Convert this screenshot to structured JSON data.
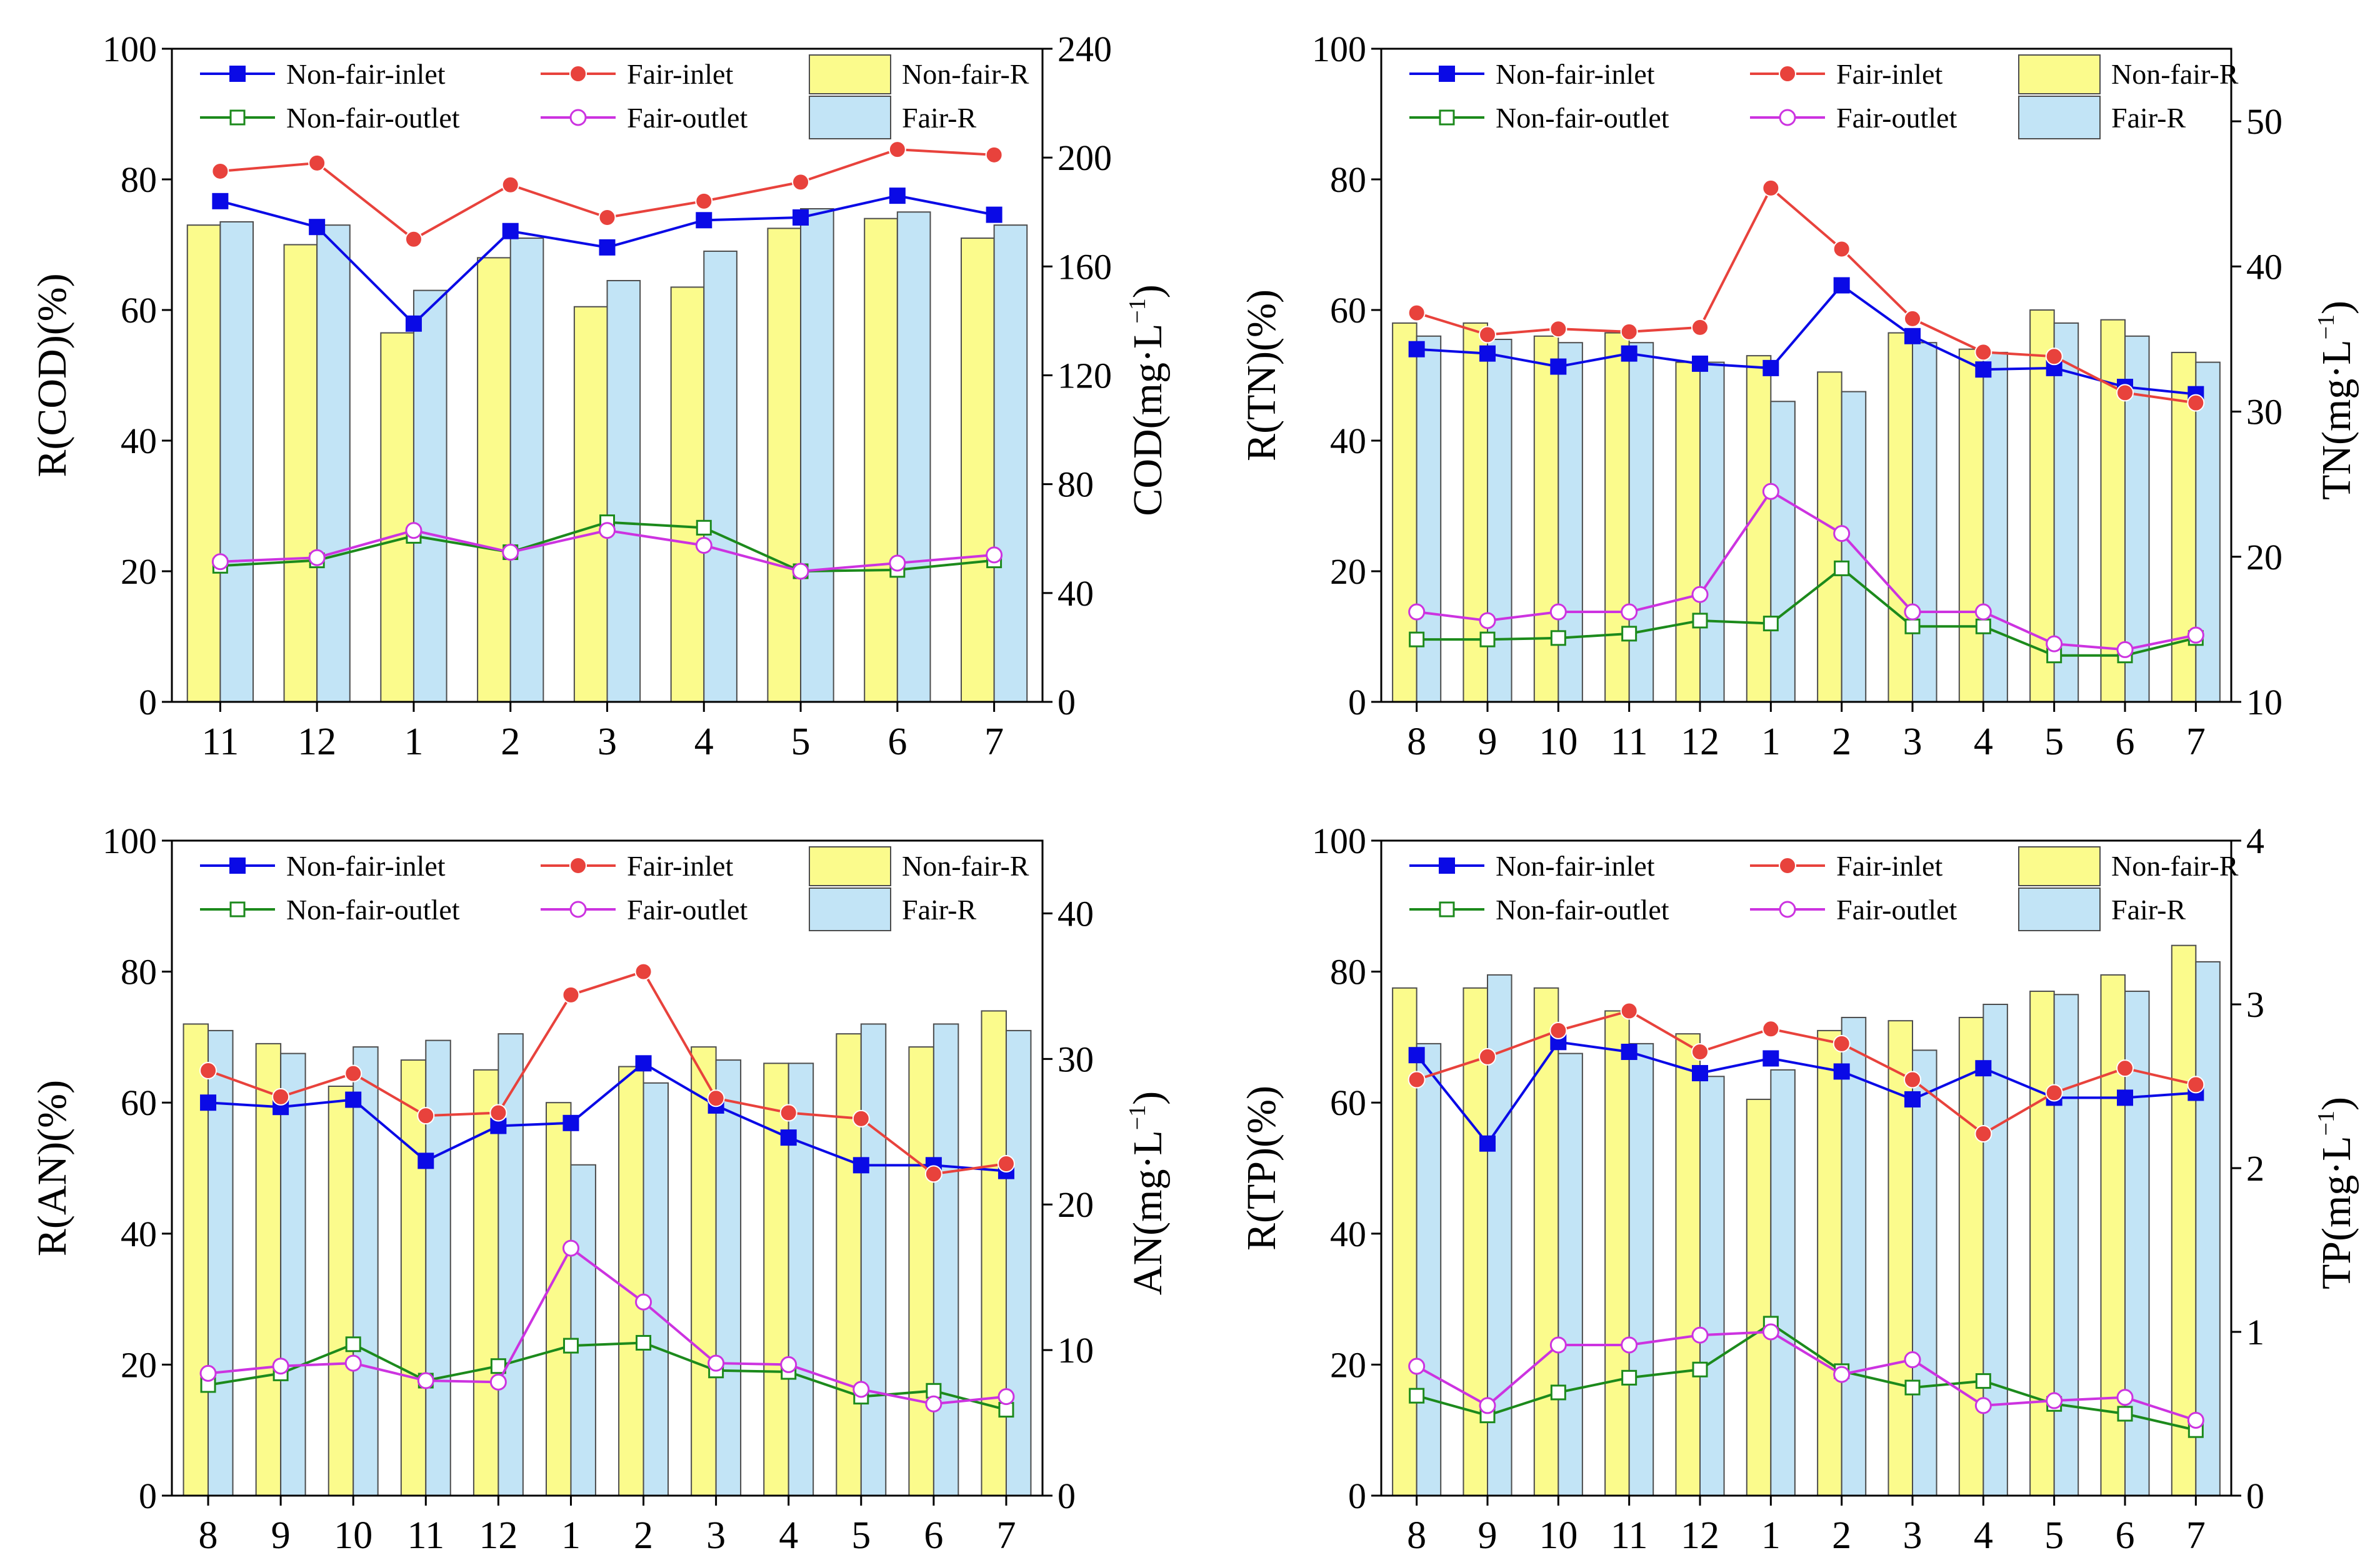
{
  "legend": {
    "non_fair_inlet": "Non-fair-inlet",
    "fair_inlet": "Fair-inlet",
    "non_fair_r": "Non-fair-R",
    "non_fair_outlet": "Non-fair-outlet",
    "fair_outlet": "Fair-outlet",
    "fair_r": "Fair-R"
  },
  "colors": {
    "non_fair_inlet": "#0a0ae6",
    "fair_inlet": "#e8423c",
    "non_fair_outlet": "#1c8a1c",
    "fair_outlet": "#cc33e0",
    "non_fair_r_fill": "#fbfb8c",
    "fair_r_fill": "#c2e4f6",
    "fair_outlet_marker_edge": "#cc33e0"
  },
  "chart_data": [
    {
      "id": "cod",
      "type": "bar+line",
      "ylabel": "R(COD)(%)",
      "y2label_main": "COD(mg·L",
      "y2label_sup": "−1",
      "y2label_close": ")",
      "ylim": [
        0,
        100
      ],
      "yticks": [
        0,
        20,
        40,
        60,
        80,
        100
      ],
      "y2lim": [
        0,
        240
      ],
      "y2ticks": [
        0,
        40,
        80,
        120,
        160,
        200,
        240
      ],
      "categories": [
        "11",
        "12",
        "1",
        "2",
        "3",
        "4",
        "5",
        "6",
        "7"
      ],
      "series": [
        {
          "name": "Non-fair-R",
          "kind": "bar",
          "axis": "left",
          "values": [
            73,
            70,
            56.5,
            68,
            60.5,
            63.5,
            72.5,
            74,
            71
          ]
        },
        {
          "name": "Fair-R",
          "kind": "bar",
          "axis": "left",
          "values": [
            73.5,
            73,
            63,
            71,
            64.5,
            69,
            75.5,
            75,
            73
          ]
        },
        {
          "name": "Non-fair-inlet",
          "kind": "line",
          "axis": "right",
          "values": [
            184,
            174.5,
            139,
            173,
            167,
            177,
            178,
            186,
            179
          ]
        },
        {
          "name": "Fair-inlet",
          "kind": "line",
          "axis": "right",
          "values": [
            195,
            198,
            170,
            190,
            178,
            184,
            191,
            203,
            201
          ]
        },
        {
          "name": "Non-fair-outlet",
          "kind": "line",
          "axis": "right",
          "values": [
            50,
            52,
            61,
            55,
            66,
            64,
            48,
            48.5,
            52
          ]
        },
        {
          "name": "Fair-outlet",
          "kind": "line",
          "axis": "right",
          "values": [
            51.5,
            53,
            63,
            55,
            63,
            57.5,
            48,
            51,
            54
          ]
        }
      ]
    },
    {
      "id": "tn",
      "type": "bar+line",
      "ylabel": "R(TN)(%)",
      "y2label_main": "TN(mg·L",
      "y2label_sup": "−1",
      "y2label_close": ")",
      "ylim": [
        0,
        100
      ],
      "yticks": [
        0,
        20,
        40,
        60,
        80,
        100
      ],
      "y2lim": [
        10,
        55
      ],
      "y2ticks": [
        10,
        20,
        30,
        40,
        50
      ],
      "categories": [
        "8",
        "9",
        "10",
        "11",
        "12",
        "1",
        "2",
        "3",
        "4",
        "5",
        "6",
        "7"
      ],
      "series": [
        {
          "name": "Non-fair-R",
          "kind": "bar",
          "axis": "left",
          "values": [
            58,
            58,
            56,
            56.5,
            52,
            53,
            50.5,
            56.5,
            54,
            60,
            58.5,
            53.5
          ]
        },
        {
          "name": "Fair-R",
          "kind": "bar",
          "axis": "left",
          "values": [
            56,
            55.5,
            55,
            55,
            52,
            46,
            47.5,
            55,
            53.5,
            58,
            56,
            52
          ]
        },
        {
          "name": "Non-fair-inlet",
          "kind": "line",
          "axis": "right",
          "values": [
            34.3,
            34,
            33.1,
            34,
            33.3,
            33,
            38.7,
            35.2,
            32.9,
            33,
            31.7,
            31.2
          ]
        },
        {
          "name": "Fair-inlet",
          "kind": "line",
          "axis": "right",
          "values": [
            36.8,
            35.3,
            35.7,
            35.5,
            35.8,
            45.4,
            41.2,
            36.4,
            34.1,
            33.8,
            31.3,
            30.6
          ]
        },
        {
          "name": "Non-fair-outlet",
          "kind": "line",
          "axis": "right",
          "values": [
            14.3,
            14.3,
            14.4,
            14.7,
            15.6,
            15.4,
            19.2,
            15.2,
            15.2,
            13.2,
            13.2,
            14.4
          ]
        },
        {
          "name": "Fair-outlet",
          "kind": "line",
          "axis": "right",
          "values": [
            16.2,
            15.6,
            16.2,
            16.2,
            17.4,
            24.5,
            21.6,
            16.2,
            16.2,
            14,
            13.6,
            14.6
          ]
        }
      ]
    },
    {
      "id": "an",
      "type": "bar+line",
      "ylabel": "R(AN)(%)",
      "y2label_main": "AN(mg·L",
      "y2label_sup": "−1",
      "y2label_close": ")",
      "ylim": [
        0,
        100
      ],
      "yticks": [
        0,
        20,
        40,
        60,
        80,
        100
      ],
      "y2lim": [
        0,
        45
      ],
      "y2ticks": [
        0,
        10,
        20,
        30,
        40
      ],
      "categories": [
        "8",
        "9",
        "10",
        "11",
        "12",
        "1",
        "2",
        "3",
        "4",
        "5",
        "6",
        "7"
      ],
      "series": [
        {
          "name": "Non-fair-R",
          "kind": "bar",
          "axis": "left",
          "values": [
            72,
            69,
            62.5,
            66.5,
            65,
            60,
            65.5,
            68.5,
            66,
            70.5,
            68.5,
            74
          ]
        },
        {
          "name": "Fair-R",
          "kind": "bar",
          "axis": "left",
          "values": [
            71,
            67.5,
            68.5,
            69.5,
            70.5,
            50.5,
            63,
            66.5,
            66,
            72,
            72,
            71
          ]
        },
        {
          "name": "Non-fair-inlet",
          "kind": "line",
          "axis": "right",
          "values": [
            27,
            26.7,
            27.2,
            23,
            25.4,
            25.6,
            29.7,
            26.8,
            24.6,
            22.7,
            22.7,
            22.3
          ]
        },
        {
          "name": "Fair-inlet",
          "kind": "line",
          "axis": "right",
          "values": [
            29.2,
            27.4,
            29,
            26.1,
            26.3,
            34.4,
            36,
            27.3,
            26.3,
            25.9,
            22.1,
            22.8
          ]
        },
        {
          "name": "Non-fair-outlet",
          "kind": "line",
          "axis": "right",
          "values": [
            7.6,
            8.4,
            10.4,
            7.9,
            8.9,
            10.3,
            10.5,
            8.6,
            8.5,
            6.8,
            7.2,
            5.9
          ]
        },
        {
          "name": "Fair-outlet",
          "kind": "line",
          "axis": "right",
          "values": [
            8.4,
            8.9,
            9.1,
            7.9,
            7.8,
            17,
            13.3,
            9.1,
            9,
            7.3,
            6.3,
            6.8
          ]
        }
      ]
    },
    {
      "id": "tp",
      "type": "bar+line",
      "ylabel": "R(TP)(%)",
      "y2label_main": "TP(mg·L",
      "y2label_sup": "−1",
      "y2label_close": ")",
      "ylim": [
        0,
        100
      ],
      "yticks": [
        0,
        20,
        40,
        60,
        80,
        100
      ],
      "y2lim": [
        0,
        4
      ],
      "y2ticks": [
        0,
        1,
        2,
        3,
        4
      ],
      "categories": [
        "8",
        "9",
        "10",
        "11",
        "12",
        "1",
        "2",
        "3",
        "4",
        "5",
        "6",
        "7"
      ],
      "series": [
        {
          "name": "Non-fair-R",
          "kind": "bar",
          "axis": "left",
          "values": [
            77.5,
            77.5,
            77.5,
            74,
            70.5,
            60.5,
            71,
            72.5,
            73,
            77,
            79.5,
            84
          ]
        },
        {
          "name": "Fair-R",
          "kind": "bar",
          "axis": "left",
          "values": [
            69,
            79.5,
            67.5,
            69,
            64,
            65,
            73,
            68,
            75,
            76.5,
            77,
            81.5
          ]
        },
        {
          "name": "Non-fair-inlet",
          "kind": "line",
          "axis": "right",
          "values": [
            2.69,
            2.15,
            2.77,
            2.71,
            2.58,
            2.67,
            2.59,
            2.42,
            2.61,
            2.43,
            2.43,
            2.46
          ]
        },
        {
          "name": "Fair-inlet",
          "kind": "line",
          "axis": "right",
          "values": [
            2.54,
            2.68,
            2.84,
            2.96,
            2.71,
            2.85,
            2.76,
            2.54,
            2.21,
            2.46,
            2.61,
            2.51
          ]
        },
        {
          "name": "Non-fair-outlet",
          "kind": "line",
          "axis": "right",
          "values": [
            0.61,
            0.49,
            0.63,
            0.72,
            0.77,
            1.05,
            0.76,
            0.66,
            0.7,
            0.56,
            0.5,
            0.4
          ]
        },
        {
          "name": "Fair-outlet",
          "kind": "line",
          "axis": "right",
          "values": [
            0.79,
            0.55,
            0.92,
            0.92,
            0.98,
            1,
            0.74,
            0.83,
            0.55,
            0.58,
            0.6,
            0.46
          ]
        }
      ]
    }
  ]
}
